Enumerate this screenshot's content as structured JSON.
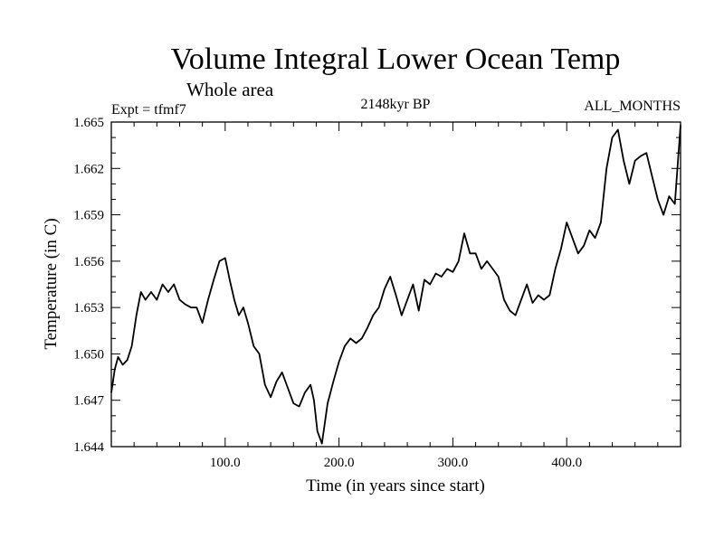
{
  "chart_data": {
    "type": "line",
    "title": "Volume Integral Lower Ocean Temp",
    "subtitle": "Whole area",
    "expt_label": "Expt = tfmf7",
    "period_label": "2148kyr BP",
    "months_label": "ALL_MONTHS",
    "xlabel": "Time (in years since start)",
    "ylabel": "Temperature (in C)",
    "xlim": [
      0,
      500
    ],
    "ylim": [
      1.644,
      1.665
    ],
    "x_ticks": [
      100,
      200,
      300,
      400
    ],
    "x_tick_labels": [
      "100.0",
      "200.0",
      "300.0",
      "400.0"
    ],
    "y_ticks": [
      1.644,
      1.647,
      1.65,
      1.653,
      1.656,
      1.659,
      1.662,
      1.665
    ],
    "y_tick_labels": [
      "1.644",
      "1.647",
      "1.650",
      "1.653",
      "1.656",
      "1.659",
      "1.662",
      "1.665"
    ],
    "grid": false,
    "series": [
      {
        "name": "Volume integral lower ocean temperature",
        "x": [
          0,
          3,
          6,
          10,
          14,
          18,
          22,
          26,
          30,
          35,
          40,
          45,
          50,
          55,
          60,
          65,
          70,
          75,
          80,
          85,
          90,
          95,
          100,
          104,
          108,
          112,
          116,
          120,
          125,
          130,
          135,
          140,
          145,
          150,
          155,
          160,
          165,
          170,
          175,
          178,
          181,
          185,
          190,
          195,
          200,
          205,
          210,
          215,
          220,
          225,
          230,
          235,
          240,
          245,
          250,
          255,
          260,
          265,
          270,
          275,
          280,
          285,
          290,
          295,
          300,
          305,
          310,
          315,
          320,
          325,
          330,
          335,
          340,
          345,
          350,
          355,
          360,
          365,
          370,
          375,
          380,
          385,
          390,
          395,
          400,
          405,
          410,
          415,
          420,
          425,
          430,
          435,
          440,
          445,
          450,
          455,
          460,
          465,
          470,
          475,
          480,
          485,
          490,
          495,
          500
        ],
        "y": [
          1.6475,
          1.649,
          1.6498,
          1.6493,
          1.6496,
          1.6505,
          1.6525,
          1.654,
          1.6535,
          1.654,
          1.6535,
          1.6545,
          1.654,
          1.6545,
          1.6535,
          1.6532,
          1.653,
          1.653,
          1.652,
          1.6535,
          1.6548,
          1.656,
          1.6562,
          1.6548,
          1.6535,
          1.6525,
          1.653,
          1.652,
          1.6505,
          1.65,
          1.648,
          1.6472,
          1.6482,
          1.6488,
          1.6478,
          1.6468,
          1.6466,
          1.6475,
          1.648,
          1.647,
          1.645,
          1.6442,
          1.6468,
          1.6482,
          1.6495,
          1.6505,
          1.651,
          1.6507,
          1.651,
          1.6517,
          1.6525,
          1.653,
          1.6542,
          1.655,
          1.6538,
          1.6525,
          1.6535,
          1.6545,
          1.6528,
          1.6548,
          1.6545,
          1.6552,
          1.655,
          1.6555,
          1.6553,
          1.656,
          1.6578,
          1.6565,
          1.6565,
          1.6555,
          1.656,
          1.6555,
          1.655,
          1.6535,
          1.6528,
          1.6525,
          1.6535,
          1.6545,
          1.6533,
          1.6538,
          1.6535,
          1.6538,
          1.6555,
          1.6568,
          1.6585,
          1.6575,
          1.6565,
          1.657,
          1.658,
          1.6575,
          1.6585,
          1.662,
          1.664,
          1.6645,
          1.6625,
          1.661,
          1.6625,
          1.6628,
          1.663,
          1.6615,
          1.66,
          1.659,
          1.6602,
          1.6597,
          1.6648
        ]
      }
    ]
  }
}
